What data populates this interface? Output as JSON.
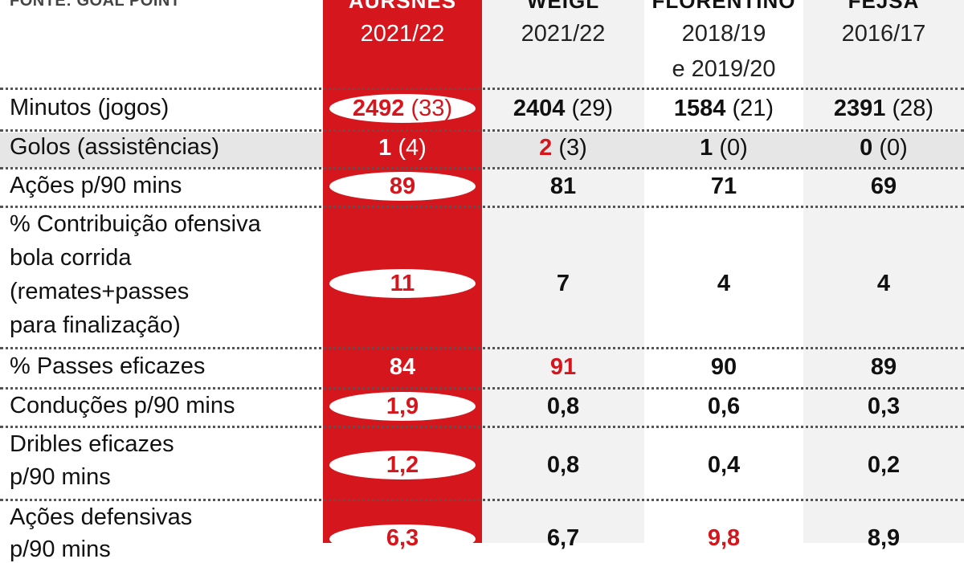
{
  "header": {
    "source": "FONTE: GOAL POINT",
    "columns": [
      {
        "name": "AURSNES",
        "season": "2021/22"
      },
      {
        "name": "WEIGL",
        "season": "2021/22"
      },
      {
        "name": "FLORENTINO",
        "season": "2018/19",
        "season2": "e 2019/20"
      },
      {
        "name": "FEJSA",
        "season": "2016/17"
      }
    ]
  },
  "rows": [
    {
      "label_lines": [
        "Minutos (jogos)"
      ],
      "cells": [
        {
          "v": "2492",
          "s": " (33)"
        },
        {
          "v": "2404",
          "s": " (29)"
        },
        {
          "v": "1584",
          "s": " (21)"
        },
        {
          "v": "2391",
          "s": " (28)"
        }
      ]
    },
    {
      "label_lines": [
        "Golos (assistências)"
      ],
      "cells": [
        {
          "v": "1",
          "s": " (4)"
        },
        {
          "v": "2",
          "s": " (3)"
        },
        {
          "v": "1",
          "s": " (0)"
        },
        {
          "v": "0",
          "s": " (0)"
        }
      ]
    },
    {
      "label_lines": [
        "Ações p/90 mins"
      ],
      "cells": [
        {
          "v": "89"
        },
        {
          "v": "81"
        },
        {
          "v": "71"
        },
        {
          "v": "69"
        }
      ]
    },
    {
      "label_lines": [
        "% Contribuição ofensiva",
        "bola corrida",
        "(remates+passes",
        "para finalização)"
      ],
      "cells": [
        {
          "v": "11"
        },
        {
          "v": "7"
        },
        {
          "v": "4"
        },
        {
          "v": "4"
        }
      ]
    },
    {
      "label_lines": [
        "% Passes eficazes"
      ],
      "cells": [
        {
          "v": "84"
        },
        {
          "v": "91"
        },
        {
          "v": "90"
        },
        {
          "v": "89"
        }
      ]
    },
    {
      "label_lines": [
        "Conduções p/90 mins"
      ],
      "cells": [
        {
          "v": "1,9"
        },
        {
          "v": "0,8"
        },
        {
          "v": "0,6"
        },
        {
          "v": "0,3"
        }
      ]
    },
    {
      "label_lines": [
        "Dribles eficazes",
        "p/90 mins"
      ],
      "cells": [
        {
          "v": "1,2"
        },
        {
          "v": "0,8"
        },
        {
          "v": "0,4"
        },
        {
          "v": "0,2"
        }
      ]
    },
    {
      "label_lines": [
        "Ações defensivas",
        "p/90 mins"
      ],
      "cells": [
        {
          "v": "6,3"
        },
        {
          "v": "6,7"
        },
        {
          "v": "9,8"
        },
        {
          "v": "8,9"
        }
      ]
    }
  ],
  "colors": {
    "accent_red": "#d5161c",
    "stripe_gray": "#e6e6e6"
  }
}
